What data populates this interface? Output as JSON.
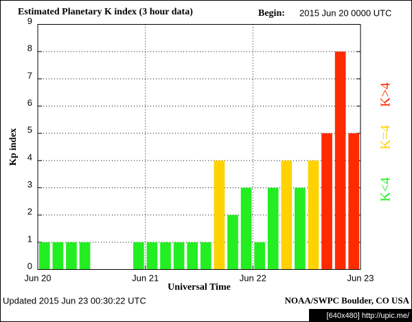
{
  "chart_data": {
    "type": "bar",
    "title": "Estimated Planetary K index (3 hour data)",
    "begin_label": "Begin:",
    "begin": "2015 Jun 20 0000 UTC",
    "y_label": "Kp index",
    "x_label": "Universal Time",
    "updated": "Updated 2015 Jun 23 00:30:22 UTC",
    "source": "NOAA/SWPC Boulder, CO USA",
    "watermark": "[640x480] http://upic.me/",
    "x": [
      0,
      3,
      6,
      9,
      12,
      15,
      18,
      21,
      24,
      27,
      30,
      33,
      36,
      39,
      42,
      45,
      48,
      51,
      54,
      57,
      60,
      63,
      66,
      69
    ],
    "bar_width": 3,
    "values": [
      1,
      1,
      1,
      1,
      0,
      0,
      0,
      1,
      1,
      1,
      1,
      1,
      1,
      4,
      2,
      3,
      1,
      3,
      4,
      3,
      4,
      5,
      8,
      5
    ],
    "colors": [
      "#22ee22",
      "#22ee22",
      "#22ee22",
      "#22ee22",
      "#22ee22",
      "#22ee22",
      "#22ee22",
      "#22ee22",
      "#22ee22",
      "#22ee22",
      "#22ee22",
      "#22ee22",
      "#22ee22",
      "#ffd200",
      "#22ee22",
      "#22ee22",
      "#22ee22",
      "#22ee22",
      "#ffd200",
      "#22ee22",
      "#ffd200",
      "#ff2a00",
      "#ff2a00",
      "#ff2a00"
    ],
    "legend": [
      {
        "name": "K<4",
        "color": "#22ee22"
      },
      {
        "name": "K=4",
        "color": "#ffd200"
      },
      {
        "name": "K>4",
        "color": "#ff2a00"
      }
    ],
    "xlim": [
      0,
      72
    ],
    "xticks": [
      {
        "value": 0,
        "label": "Jun 20"
      },
      {
        "value": 24,
        "label": "Jun 21"
      },
      {
        "value": 48,
        "label": "Jun 22"
      },
      {
        "value": 72,
        "label": "Jun 23"
      }
    ],
    "ylim": [
      0,
      9
    ],
    "yticks": [
      0,
      1,
      2,
      3,
      4,
      5,
      6,
      7,
      8,
      9
    ],
    "grid": true
  }
}
